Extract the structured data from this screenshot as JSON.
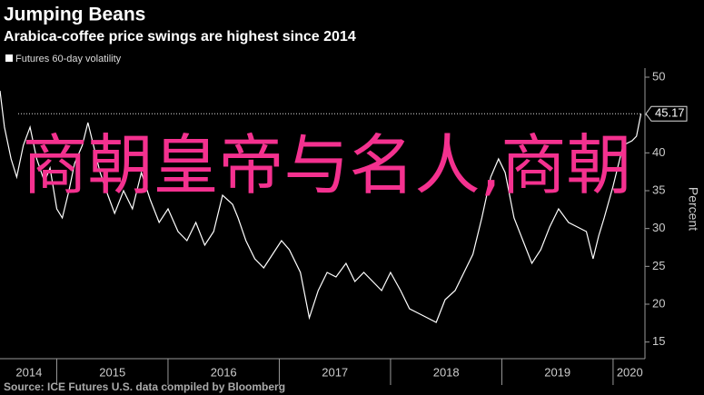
{
  "chart_data": {
    "type": "line",
    "title": "Jumping Beans",
    "subtitle": "Arabica-coffee price swings are highest since 2014",
    "y_label": "Percent",
    "source": "Source: ICE Futures U.S. data compiled by Bloomberg",
    "overlay_text": "商朝皇帝与名人,商朝",
    "annotation": {
      "value": 45.17,
      "label": "45.17"
    },
    "series": [
      {
        "name": "Futures 60-day volatility",
        "color": "#ffffff",
        "x": [
          2014.49,
          2014.53,
          2014.59,
          2014.64,
          2014.7,
          2014.76,
          2014.82,
          2014.89,
          2014.94,
          2015.0,
          2015.05,
          2015.11,
          2015.16,
          2015.23,
          2015.28,
          2015.33,
          2015.39,
          2015.46,
          2015.52,
          2015.6,
          2015.68,
          2015.76,
          2015.84,
          2015.92,
          2016.0,
          2016.09,
          2016.17,
          2016.25,
          2016.33,
          2016.41,
          2016.49,
          2016.58,
          2016.63,
          2016.7,
          2016.78,
          2016.86,
          2016.94,
          2017.02,
          2017.09,
          2017.19,
          2017.27,
          2017.35,
          2017.43,
          2017.51,
          2017.6,
          2017.68,
          2017.76,
          2017.84,
          2017.92,
          2018.0,
          2018.09,
          2018.17,
          2018.25,
          2018.33,
          2018.41,
          2018.49,
          2018.58,
          2018.66,
          2018.74,
          2018.82,
          2018.9,
          2018.97,
          2019.03,
          2019.11,
          2019.19,
          2019.27,
          2019.35,
          2019.43,
          2019.51,
          2019.6,
          2019.68,
          2019.76,
          2019.82,
          2019.87,
          2019.92,
          2020.0,
          2020.09,
          2020.17,
          2020.21,
          2020.25
        ],
        "values": [
          48.2,
          43.4,
          39.2,
          36.8,
          41.0,
          43.4,
          39.2,
          36.2,
          38.0,
          32.6,
          31.4,
          35.0,
          38.6,
          41.0,
          44.0,
          41.0,
          37.4,
          34.4,
          32.0,
          35.0,
          32.6,
          37.4,
          33.8,
          30.8,
          32.6,
          29.6,
          28.4,
          30.8,
          27.8,
          29.6,
          34.4,
          33.2,
          31.4,
          28.4,
          26.0,
          24.8,
          26.6,
          28.4,
          27.2,
          24.2,
          18.2,
          21.8,
          24.2,
          23.6,
          25.4,
          23.0,
          24.2,
          23.0,
          21.8,
          24.2,
          21.8,
          19.4,
          18.8,
          18.2,
          17.6,
          20.6,
          21.8,
          24.2,
          26.6,
          31.4,
          36.8,
          39.2,
          37.4,
          31.4,
          28.4,
          25.4,
          27.2,
          30.2,
          32.6,
          30.8,
          30.2,
          29.6,
          26.0,
          29.0,
          31.4,
          35.6,
          41.0,
          41.6,
          42.2,
          45.17
        ]
      }
    ],
    "xlim": [
      2014.49,
      2020.27
    ],
    "xticks": [
      {
        "value": 2014.75,
        "label": "2014"
      },
      {
        "value": 2015.5,
        "label": "2015"
      },
      {
        "value": 2016.5,
        "label": "2016"
      },
      {
        "value": 2017.5,
        "label": "2017"
      },
      {
        "value": 2018.5,
        "label": "2018"
      },
      {
        "value": 2019.5,
        "label": "2019"
      },
      {
        "value": 2020.15,
        "label": "2020"
      }
    ],
    "ylim": [
      14,
      51.2
    ],
    "yticks": [
      15,
      20,
      25,
      30,
      35,
      40,
      45,
      50
    ],
    "y_axis_side": "right",
    "grid": false
  }
}
